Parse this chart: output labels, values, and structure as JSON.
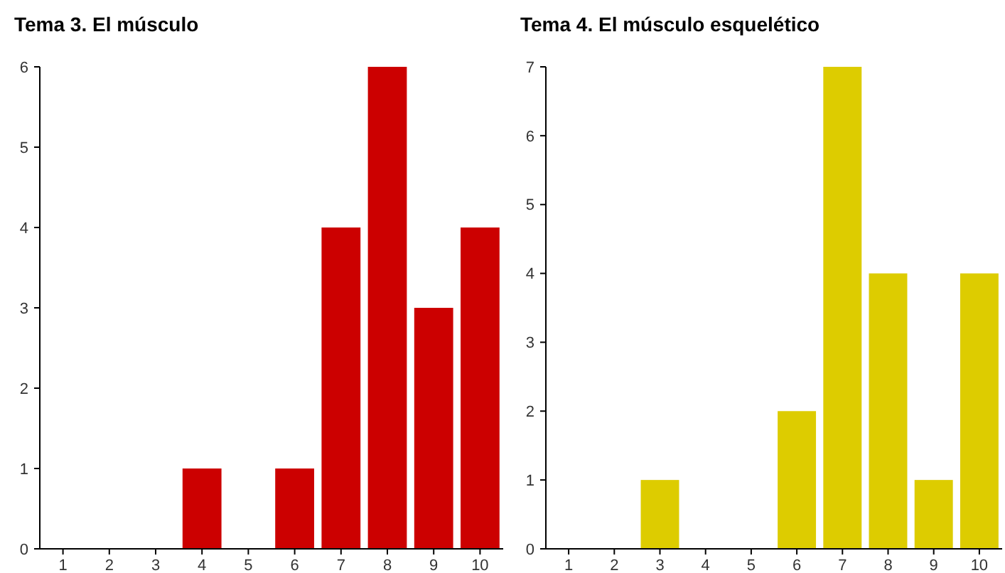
{
  "chart_data": [
    {
      "type": "bar",
      "title": "Tema 3. El músculo",
      "categories": [
        "1",
        "2",
        "3",
        "4",
        "5",
        "6",
        "7",
        "8",
        "9",
        "10"
      ],
      "values": [
        0,
        0,
        0,
        1,
        0,
        1,
        4,
        6,
        3,
        4
      ],
      "color": "#cc0000",
      "ylim": [
        0,
        6
      ],
      "yticks": [
        0,
        1,
        2,
        3,
        4,
        5,
        6
      ],
      "grid": false
    },
    {
      "type": "bar",
      "title": "Tema 4. El músculo esquelético",
      "categories": [
        "1",
        "2",
        "3",
        "4",
        "5",
        "6",
        "7",
        "8",
        "9",
        "10"
      ],
      "values": [
        0,
        0,
        1,
        0,
        0,
        2,
        7,
        4,
        1,
        4
      ],
      "color": "#ddcc00",
      "ylim": [
        0,
        7
      ],
      "yticks": [
        0,
        1,
        2,
        3,
        4,
        5,
        6,
        7
      ],
      "grid": false
    }
  ]
}
